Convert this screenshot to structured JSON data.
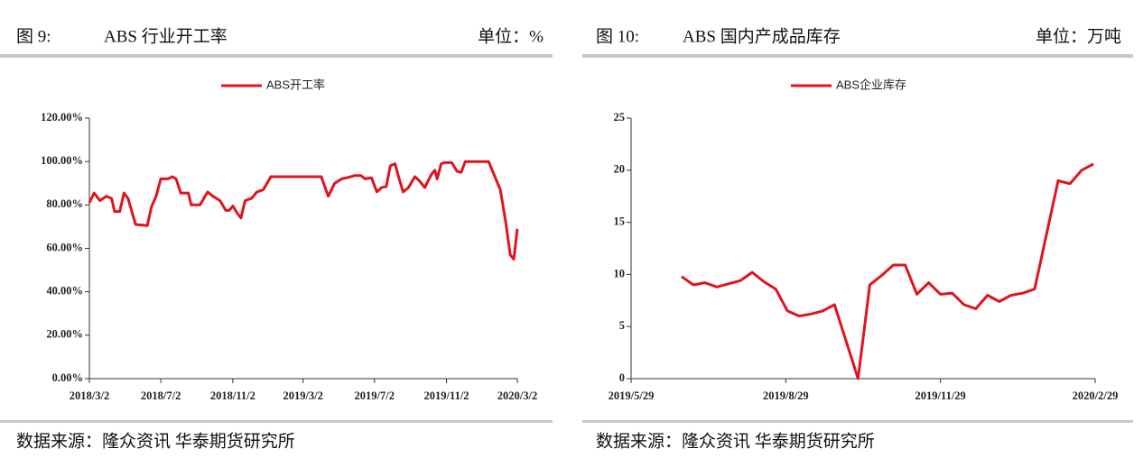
{
  "chart_data": [
    {
      "type": "line",
      "figure_label": "图 9:",
      "title": "ABS 行业开工率",
      "unit": "单位：%",
      "source": "数据来源：隆众资讯 华泰期货研究所",
      "x": [
        "2018/3/2",
        "2018/3/10",
        "2018/3/20",
        "2018/3/31",
        "2018/4/9",
        "2018/4/14",
        "2018/4/23",
        "2018/4/30",
        "2018/5/7",
        "2018/5/20",
        "2018/6/9",
        "2018/6/16",
        "2018/6/24",
        "2018/7/2",
        "2018/7/14",
        "2018/7/22",
        "2018/7/28",
        "2018/8/5",
        "2018/8/18",
        "2018/8/23",
        "2018/9/7",
        "2018/9/20",
        "2018/9/29",
        "2018/10/11",
        "2018/10/21",
        "2018/10/27",
        "2018/11/2",
        "2018/11/10",
        "2018/11/16",
        "2018/11/23",
        "2018/12/4",
        "2018/12/13",
        "2018/12/24",
        "2019/1/6",
        "2019/4/2",
        "2019/4/14",
        "2019/4/25",
        "2019/5/7",
        "2019/5/16",
        "2019/5/29",
        "2019/6/9",
        "2019/6/16",
        "2019/6/27",
        "2019/7/6",
        "2019/7/14",
        "2019/7/22",
        "2019/7/29",
        "2019/8/6",
        "2019/8/12",
        "2019/8/20",
        "2019/8/29",
        "2019/9/9",
        "2019/9/17",
        "2019/9/26",
        "2019/10/7",
        "2019/10/13",
        "2019/10/17",
        "2019/10/24",
        "2019/10/30",
        "2019/11/11",
        "2019/11/20",
        "2019/11/27",
        "2019/12/4",
        "2020/1/13",
        "2020/1/22",
        "2020/2/2",
        "2020/2/11",
        "2020/2/19",
        "2020/2/25",
        "2020/3/2"
      ],
      "series": [
        {
          "name": "ABS开工率",
          "color": "#e0131f",
          "values": [
            81,
            85.5,
            82,
            84,
            83,
            77,
            77,
            85.5,
            83,
            71,
            70.5,
            79,
            84,
            92,
            92,
            93,
            92,
            85.5,
            85.5,
            80,
            80,
            86,
            84,
            82,
            77.5,
            77.5,
            79.5,
            76,
            74,
            82,
            83,
            86,
            87,
            93,
            93,
            84,
            90,
            92,
            92.5,
            93.5,
            93.5,
            92,
            92.5,
            86,
            88,
            88.5,
            98,
            99,
            93,
            86,
            88,
            93,
            91,
            88,
            94,
            96,
            92,
            99,
            99.5,
            99.5,
            95.5,
            95,
            100,
            100,
            94,
            87,
            72.5,
            57,
            55,
            69
          ]
        }
      ],
      "xlim": [
        "2018/3/2",
        "2020/3/2"
      ],
      "xticks": [
        "2018/3/2",
        "2018/7/2",
        "2018/11/2",
        "2019/3/2",
        "2019/7/2",
        "2019/11/2",
        "2020/3/2"
      ],
      "ylim": [
        0,
        120
      ],
      "yticks": [
        {
          "value": 0,
          "label": "0.00%"
        },
        {
          "value": 20,
          "label": "20.00%"
        },
        {
          "value": 40,
          "label": "40.00%"
        },
        {
          "value": 60,
          "label": "60.00%"
        },
        {
          "value": 80,
          "label": "80.00%"
        },
        {
          "value": 100,
          "label": "100.00%"
        },
        {
          "value": 120,
          "label": "120.00%"
        }
      ]
    },
    {
      "type": "line",
      "figure_label": "图 10:",
      "title": "ABS 国内产成品库存",
      "unit": "单位：万吨",
      "source": "数据来源：隆众资讯 华泰期货研究所",
      "x": [
        "2019/6/28",
        "2019/7/5",
        "2019/7/12",
        "2019/7/19",
        "2019/7/26",
        "2019/8/2",
        "2019/8/9",
        "2019/8/16",
        "2019/8/23",
        "2019/8/30",
        "2019/9/6",
        "2019/9/13",
        "2019/9/20",
        "2019/9/27",
        "2019/10/11",
        "2019/10/18",
        "2019/10/25",
        "2019/11/1",
        "2019/11/8",
        "2019/11/15",
        "2019/11/22",
        "2019/11/29",
        "2019/12/6",
        "2019/12/13",
        "2019/12/20",
        "2019/12/27",
        "2020/1/3",
        "2020/1/10",
        "2020/1/17",
        "2020/1/24",
        "2020/2/7",
        "2020/2/14",
        "2020/2/21",
        "2020/2/28"
      ],
      "series": [
        {
          "name": "ABS企业库存",
          "color": "#e0131f",
          "values": [
            9.8,
            9.0,
            9.2,
            8.8,
            9.1,
            9.4,
            10.2,
            9.3,
            8.6,
            6.5,
            6.0,
            6.2,
            6.5,
            7.1,
            0,
            9.0,
            9.9,
            10.9,
            10.9,
            8.1,
            9.2,
            8.1,
            8.2,
            7.1,
            6.7,
            8.0,
            7.4,
            8.0,
            8.2,
            8.6,
            19.0,
            18.7,
            20.0,
            20.6
          ]
        }
      ],
      "xlim": [
        "2019/5/29",
        "2020/2/29"
      ],
      "xticks": [
        "2019/5/29",
        "2019/8/29",
        "2019/11/29",
        "2020/2/29"
      ],
      "ylim": [
        0,
        25
      ],
      "yticks": [
        0,
        5,
        10,
        15,
        20,
        25
      ]
    }
  ]
}
